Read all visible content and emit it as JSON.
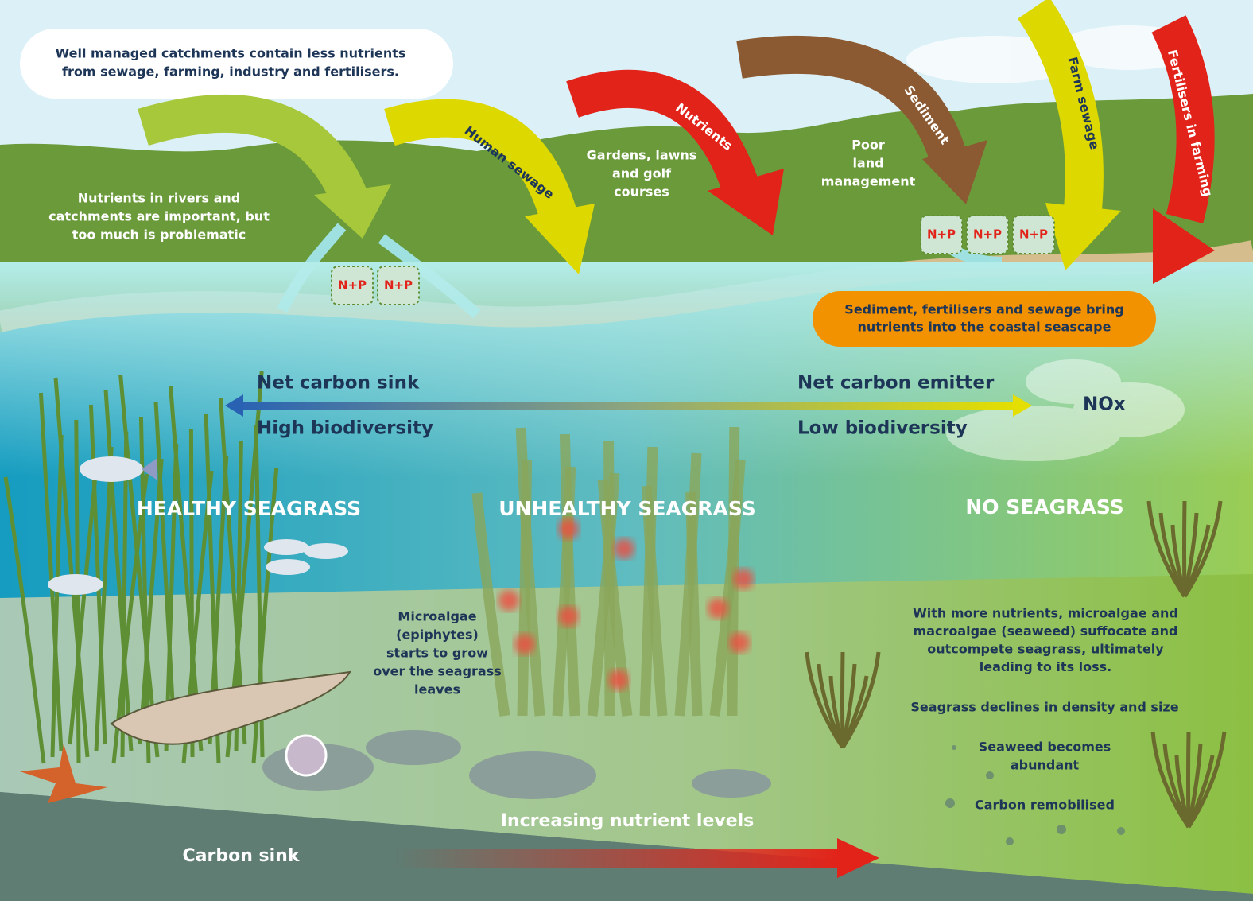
{
  "callouts": {
    "catchments": [
      "Well managed catchments contain less nutrients",
      "from sewage, farming, industry and fertilisers."
    ],
    "rivers": [
      "Nutrients in rivers and",
      "catchments are important, but",
      "too much is problematic"
    ],
    "sources": [
      "Sediment, fertilisers and sewage bring",
      "nutrients into the coastal seascape"
    ]
  },
  "arrows": [
    "Human sewage",
    "Nutrients",
    "Sediment",
    "Farm sewage",
    "Fertilisers in farming"
  ],
  "land_labels": {
    "gardens": [
      "Gardens, lawns",
      "and golf",
      "courses"
    ],
    "poor_land": [
      "Poor",
      "land",
      "management"
    ]
  },
  "nutrient_badges": [
    "N+P",
    "N+P",
    "N+P",
    "N+P",
    "N+P"
  ],
  "gradient": {
    "left_top": "Net carbon sink",
    "left_bottom": "High biodiversity",
    "right_top": "Net carbon emitter",
    "right_bottom": "Low biodiversity",
    "cloud": "NOx"
  },
  "zones": [
    "HEALTHY SEAGRASS",
    "UNHEALTHY SEAGRASS",
    "NO SEAGRASS"
  ],
  "notes": {
    "microalgae": [
      "Microalgae",
      "(epiphytes)",
      "starts to grow",
      "over the seagrass",
      "leaves"
    ],
    "loss": [
      "With more nutrients, microalgae and",
      "macroalgae (seaweed) suffocate and",
      "outcompete seagrass, ultimately",
      "leading to its loss."
    ],
    "decline": "Seagrass declines in density and size",
    "seaweed": [
      "Seaweed becomes",
      "abundant"
    ],
    "carbon_remobilised": "Carbon remobilised"
  },
  "bottom": {
    "nutrient_levels": "Increasing nutrient levels",
    "carbon_sink": "Carbon sink"
  }
}
